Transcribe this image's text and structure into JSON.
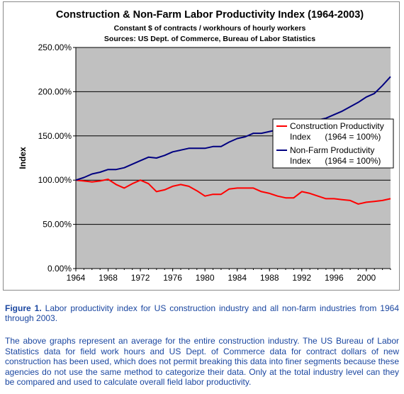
{
  "chart_data": {
    "type": "line",
    "title": "Construction & Non-Farm Labor Productivity Index (1964-2003)",
    "subtitle_lines": [
      "Constant $ of contracts / workhours of hourly workers",
      "Sources: US Dept. of Commerce, Bureau of Labor Statistics"
    ],
    "ylabel": "Index",
    "xlabel": "",
    "ylim": [
      0,
      250
    ],
    "xlim": [
      1964,
      2003
    ],
    "y_ticks": [
      "0.00%",
      "50.00%",
      "100.00%",
      "150.00%",
      "200.00%",
      "250.00%"
    ],
    "x_ticks": [
      "1964",
      "1968",
      "1972",
      "1976",
      "1980",
      "1984",
      "1988",
      "1992",
      "1996",
      "2000"
    ],
    "grid": "horizontal",
    "legend_position": "right",
    "x": [
      1964,
      1965,
      1966,
      1967,
      1968,
      1969,
      1970,
      1971,
      1972,
      1973,
      1974,
      1975,
      1976,
      1977,
      1978,
      1979,
      1980,
      1981,
      1982,
      1983,
      1984,
      1985,
      1986,
      1987,
      1988,
      1989,
      1990,
      1991,
      1992,
      1993,
      1994,
      1995,
      1996,
      1997,
      1998,
      1999,
      2000,
      2001,
      2002,
      2003
    ],
    "series": [
      {
        "name": "Construction Productivity Index      (1964 = 100%)",
        "name_lines": [
          "Construction Productivity",
          "Index      (1964 = 100%)"
        ],
        "color": "#ff0000",
        "values": [
          100,
          99,
          98,
          99,
          101,
          95,
          91,
          96,
          100,
          96,
          87,
          89,
          93,
          95,
          93,
          88,
          82,
          84,
          84,
          90,
          91,
          91,
          91,
          87,
          85,
          82,
          80,
          80,
          87,
          85,
          82,
          79,
          79,
          78,
          77,
          73,
          75,
          76,
          77,
          79
        ]
      },
      {
        "name": "Non-Farm Productivity Index      (1964 = 100%)",
        "name_lines": [
          "Non-Farm Productivity",
          "Index      (1964 = 100%)"
        ],
        "color": "#000080",
        "values": [
          100,
          103,
          107,
          109,
          112,
          112,
          114,
          118,
          122,
          126,
          125,
          128,
          132,
          134,
          136,
          136,
          136,
          138,
          138,
          143,
          147,
          149,
          153,
          153,
          155,
          157,
          158,
          160,
          164,
          165,
          168,
          170,
          174,
          178,
          183,
          188,
          194,
          198,
          207,
          217
        ]
      }
    ]
  },
  "caption": {
    "label": "Figure 1.",
    "text": " Labor productivity index for US construction industry and all non-farm industries from 1964 through 2003."
  },
  "body_text": "The above graphs represent an average for the entire construction industry. The US Bureau of Labor Statistics data for field work hours and US Dept. of Commerce data for contract dollars of new construction has been used, which does not permit breaking this data into finer segments because these agencies do not use the same method to categorize their data. Only at the total industry level can they be compared and used to calculate overall field labor productivity."
}
